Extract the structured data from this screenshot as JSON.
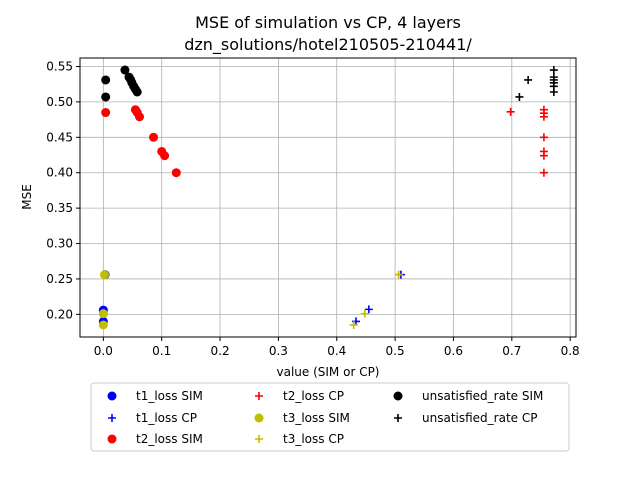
{
  "chart_data": {
    "type": "scatter",
    "title": "MSE of simulation vs CP, 4 layers",
    "subtitle": "dzn_solutions/hotel210505-210441/",
    "xlabel": "value (SIM or CP)",
    "ylabel": "MSE",
    "xlim": [
      -0.04,
      0.81
    ],
    "ylim": [
      0.168,
      0.562
    ],
    "xticks": [
      0.0,
      0.1,
      0.2,
      0.3,
      0.4,
      0.5,
      0.6,
      0.7,
      0.8
    ],
    "xtick_labels": [
      "0.0",
      "0.1",
      "0.2",
      "0.3",
      "0.4",
      "0.5",
      "0.6",
      "0.7",
      "0.8"
    ],
    "yticks": [
      0.2,
      0.25,
      0.3,
      0.35,
      0.4,
      0.45,
      0.5,
      0.55
    ],
    "ytick_labels": [
      "0.20",
      "0.25",
      "0.30",
      "0.35",
      "0.40",
      "0.45",
      "0.50",
      "0.55"
    ],
    "grid": true,
    "legend_position": "below-plot",
    "legend_columns": 3,
    "series": [
      {
        "name": "t1_loss SIM",
        "marker": "circle",
        "color": "#0000ff",
        "x": [
          0.0,
          0.0,
          0.003
        ],
        "y": [
          0.19,
          0.206,
          0.256
        ]
      },
      {
        "name": "t1_loss CP",
        "marker": "plus",
        "color": "#0000ff",
        "x": [
          0.433,
          0.455,
          0.51
        ],
        "y": [
          0.19,
          0.207,
          0.256
        ]
      },
      {
        "name": "t2_loss SIM",
        "marker": "circle",
        "color": "#ff0000",
        "x": [
          0.004,
          0.055,
          0.058,
          0.062,
          0.086,
          0.1,
          0.105,
          0.125
        ],
        "y": [
          0.485,
          0.489,
          0.485,
          0.479,
          0.45,
          0.43,
          0.424,
          0.4
        ]
      },
      {
        "name": "t2_loss CP",
        "marker": "plus",
        "color": "#ff0000",
        "x": [
          0.698,
          0.755,
          0.755,
          0.755,
          0.755,
          0.755,
          0.755,
          0.755
        ],
        "y": [
          0.486,
          0.489,
          0.484,
          0.479,
          0.45,
          0.43,
          0.424,
          0.4
        ]
      },
      {
        "name": "t3_loss SIM",
        "marker": "circle",
        "color": "#bfbf00",
        "x": [
          0.0,
          0.0,
          0.002
        ],
        "y": [
          0.185,
          0.201,
          0.256
        ]
      },
      {
        "name": "t3_loss CP",
        "marker": "plus",
        "color": "#bfbf00",
        "x": [
          0.429,
          0.448,
          0.506
        ],
        "y": [
          0.185,
          0.201,
          0.256
        ]
      },
      {
        "name": "unsatisfied_rate SIM",
        "marker": "circle",
        "color": "#000000",
        "x": [
          0.004,
          0.004,
          0.037,
          0.044,
          0.047,
          0.049,
          0.052,
          0.055,
          0.058
        ],
        "y": [
          0.531,
          0.507,
          0.545,
          0.535,
          0.531,
          0.527,
          0.522,
          0.518,
          0.514
        ]
      },
      {
        "name": "unsatisfied_rate CP",
        "marker": "plus",
        "color": "#000000",
        "x": [
          0.713,
          0.728,
          0.772,
          0.772,
          0.772,
          0.772,
          0.772,
          0.772
        ],
        "y": [
          0.507,
          0.531,
          0.545,
          0.535,
          0.531,
          0.527,
          0.522,
          0.514
        ]
      }
    ]
  }
}
